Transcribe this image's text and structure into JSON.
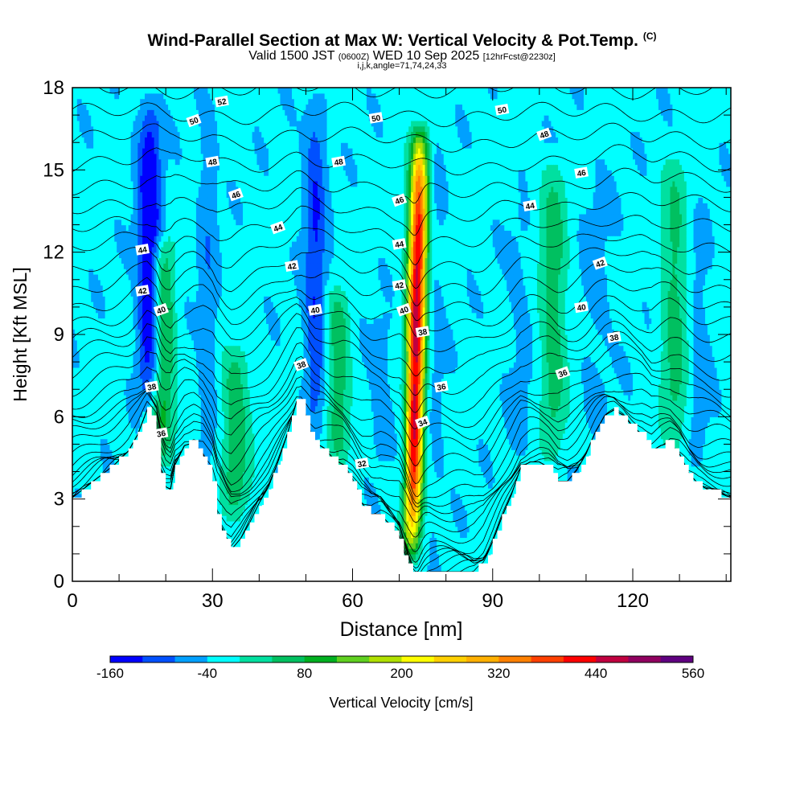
{
  "title": {
    "main": "Wind-Parallel Section at Max W: Vertical Velocity & Pot.Temp.",
    "copyright": "(C)",
    "valid_prefix": "Valid 1500 JST",
    "valid_utc": "(0600Z)",
    "valid_date": "WED 10 Sep 2025",
    "forecast": "[12hrFcst@2230z]",
    "indices": "i,j,k,angle=71,74,24,33"
  },
  "colors": {
    "background": "#ffffff",
    "terrain": "#ffffff",
    "contour": "#000000",
    "colorbar": [
      "#0000ff",
      "#0050ff",
      "#00a0ff",
      "#00ffff",
      "#00e0a0",
      "#00c060",
      "#00b020",
      "#60d020",
      "#b0e000",
      "#ffff00",
      "#ffd000",
      "#ffb000",
      "#ff8000",
      "#ff4000",
      "#ff0000",
      "#c00040",
      "#900060",
      "#600080"
    ]
  },
  "chart_data": {
    "type": "heatmap",
    "xlabel": "Distance [nm]",
    "ylabel": "Height [Kft MSL]",
    "xlim": [
      0,
      141
    ],
    "ylim": [
      0,
      18
    ],
    "xticks": [
      0,
      30,
      60,
      90,
      120
    ],
    "yticks": [
      0,
      3,
      6,
      9,
      12,
      15,
      18
    ],
    "colorbar": {
      "label": "Vertical Velocity [cm/s]",
      "min": -160,
      "max": 560,
      "step": 40,
      "tick_labels": [
        -160,
        -40,
        80,
        200,
        320,
        440,
        560
      ]
    },
    "terrain_kft": {
      "x": [
        0,
        3,
        6,
        9,
        12,
        14,
        16,
        18,
        19,
        20,
        21,
        22,
        24,
        26,
        28,
        30,
        31,
        32,
        33,
        34,
        36,
        38,
        40,
        42,
        44,
        46,
        47,
        48,
        49,
        50,
        51,
        52,
        54,
        56,
        58,
        60,
        61,
        62,
        64,
        66,
        68,
        70,
        71,
        72,
        73,
        74,
        76,
        78,
        80,
        82,
        84,
        86,
        88,
        90,
        92,
        94,
        96,
        98,
        100,
        102,
        104,
        106,
        108,
        110,
        112,
        114,
        116,
        118,
        120,
        122,
        124,
        126,
        128,
        130,
        132,
        134,
        136,
        138,
        141
      ],
      "y": [
        3.0,
        3.4,
        3.8,
        4.2,
        4.7,
        5.3,
        6.2,
        5.5,
        4.0,
        3.4,
        3.3,
        4.2,
        4.9,
        5.0,
        4.6,
        3.5,
        2.4,
        1.9,
        1.4,
        1.1,
        1.5,
        2.1,
        2.8,
        3.4,
        4.3,
        5.3,
        5.9,
        6.5,
        6.5,
        6.0,
        5.4,
        5.0,
        4.8,
        4.4,
        4.2,
        3.6,
        3.2,
        2.8,
        2.4,
        2.4,
        2.0,
        1.6,
        1.0,
        0.6,
        0.4,
        0.3,
        0.3,
        0.3,
        0.3,
        0.3,
        0.3,
        0.3,
        0.6,
        1.4,
        2.3,
        3.1,
        4.1,
        4.3,
        4.3,
        4.1,
        3.6,
        3.6,
        4.0,
        4.6,
        5.4,
        6.0,
        6.2,
        6.0,
        5.6,
        5.3,
        4.7,
        4.9,
        5.0,
        4.6,
        3.9,
        3.5,
        3.3,
        3.2,
        3.0
      ]
    },
    "vertical_velocity_features": [
      {
        "x": 16.5,
        "z_min": 6.0,
        "z_max": 18,
        "peak": -170,
        "width_nm": 2.4
      },
      {
        "x": 19.5,
        "z_min": 4.0,
        "z_max": 13,
        "peak": 95,
        "width_nm": 2.5
      },
      {
        "x": 29.0,
        "z_min": 3.5,
        "z_max": 18,
        "peak": -70,
        "width_nm": 2.0
      },
      {
        "x": 35.0,
        "z_min": 2.0,
        "z_max": 9,
        "peak": 70,
        "width_nm": 3.0
      },
      {
        "x": 52.0,
        "z_min": 5.0,
        "z_max": 18,
        "peak": -120,
        "width_nm": 2.2
      },
      {
        "x": 57.0,
        "z_min": 4.0,
        "z_max": 11,
        "peak": 70,
        "width_nm": 2.5
      },
      {
        "x": 66.0,
        "z_min": 4.0,
        "z_max": 10,
        "peak": -60,
        "width_nm": 2.5
      },
      {
        "x": 73.5,
        "z_min": 0.5,
        "z_max": 17,
        "peak": 460,
        "width_nm": 2.0
      },
      {
        "x": 71.5,
        "z_min": 2.0,
        "z_max": 9,
        "peak": -80,
        "width_nm": 1.2
      },
      {
        "x": 77.0,
        "z_min": 1.0,
        "z_max": 18,
        "peak": -55,
        "width_nm": 2.5
      },
      {
        "x": 96.0,
        "z_min": 4.0,
        "z_max": 14,
        "peak": -50,
        "width_nm": 3.0
      },
      {
        "x": 103.0,
        "z_min": 4.0,
        "z_max": 16,
        "peak": 60,
        "width_nm": 3.0
      },
      {
        "x": 112.0,
        "z_min": 5.0,
        "z_max": 16,
        "peak": -50,
        "width_nm": 3.5
      },
      {
        "x": 129.0,
        "z_min": 4.0,
        "z_max": 16,
        "peak": 55,
        "width_nm": 3.0
      },
      {
        "x": 134.0,
        "z_min": 4.0,
        "z_max": 14,
        "peak": -60,
        "width_nm": 2.5
      }
    ],
    "background_w": -30,
    "potential_temperature_labels": [
      {
        "x": 26,
        "y": 16.8,
        "value": "50"
      },
      {
        "x": 32,
        "y": 17.5,
        "value": "52"
      },
      {
        "x": 30,
        "y": 15.3,
        "value": "48"
      },
      {
        "x": 35,
        "y": 14.1,
        "value": "46"
      },
      {
        "x": 15,
        "y": 12.1,
        "value": "44"
      },
      {
        "x": 15,
        "y": 10.6,
        "value": "42"
      },
      {
        "x": 19,
        "y": 9.9,
        "value": "40"
      },
      {
        "x": 17,
        "y": 7.1,
        "value": "38"
      },
      {
        "x": 19,
        "y": 5.4,
        "value": "36"
      },
      {
        "x": 44,
        "y": 12.9,
        "value": "44"
      },
      {
        "x": 47,
        "y": 11.5,
        "value": "42"
      },
      {
        "x": 52,
        "y": 9.9,
        "value": "40"
      },
      {
        "x": 49,
        "y": 7.9,
        "value": "38"
      },
      {
        "x": 57,
        "y": 15.3,
        "value": "48"
      },
      {
        "x": 65,
        "y": 16.9,
        "value": "50"
      },
      {
        "x": 70,
        "y": 13.9,
        "value": "46"
      },
      {
        "x": 70,
        "y": 12.3,
        "value": "44"
      },
      {
        "x": 70,
        "y": 10.8,
        "value": "42"
      },
      {
        "x": 71,
        "y": 9.9,
        "value": "40"
      },
      {
        "x": 75,
        "y": 9.1,
        "value": "38"
      },
      {
        "x": 79,
        "y": 7.1,
        "value": "36"
      },
      {
        "x": 75,
        "y": 5.8,
        "value": "34"
      },
      {
        "x": 62,
        "y": 4.3,
        "value": "32"
      },
      {
        "x": 92,
        "y": 17.2,
        "value": "50"
      },
      {
        "x": 101,
        "y": 16.3,
        "value": "48"
      },
      {
        "x": 109,
        "y": 14.9,
        "value": "46"
      },
      {
        "x": 98,
        "y": 13.7,
        "value": "44"
      },
      {
        "x": 113,
        "y": 11.6,
        "value": "42"
      },
      {
        "x": 109,
        "y": 10.0,
        "value": "40"
      },
      {
        "x": 116,
        "y": 8.9,
        "value": "38"
      },
      {
        "x": 105,
        "y": 7.6,
        "value": "36"
      }
    ]
  }
}
